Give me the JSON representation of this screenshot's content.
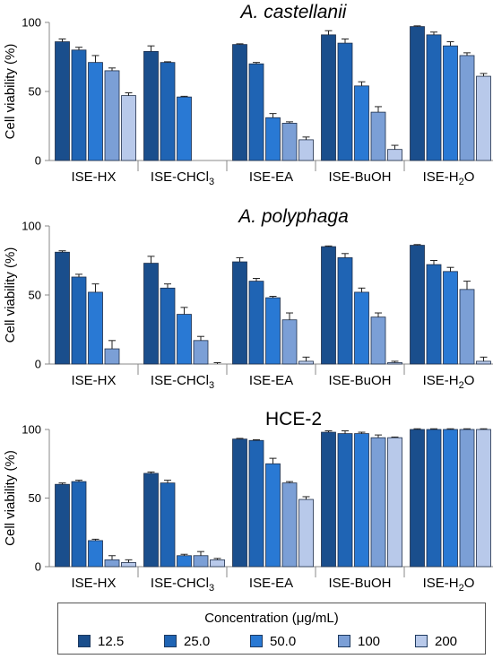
{
  "chart_data": [
    {
      "type": "bar",
      "title": "A. castellanii",
      "title_italic": true,
      "ylabel": "Cell viability (%)",
      "ylim": [
        0,
        100
      ],
      "yticks": [
        0,
        50,
        100
      ],
      "categories": [
        "ISE-HX",
        "ISE-CHCl3",
        "ISE-EA",
        "ISE-BuOH",
        "ISE-H2O"
      ],
      "series": [
        {
          "name": "12.5",
          "values": [
            86,
            79,
            84,
            91,
            97
          ],
          "errors": [
            2,
            4,
            0.5,
            3,
            0.5
          ]
        },
        {
          "name": "25.0",
          "values": [
            80,
            71,
            70,
            85,
            91
          ],
          "errors": [
            2,
            0.5,
            1,
            3,
            2
          ]
        },
        {
          "name": "50.0",
          "values": [
            71,
            46,
            31,
            54,
            83
          ],
          "errors": [
            5,
            0.5,
            3,
            3,
            3
          ]
        },
        {
          "name": "100",
          "values": [
            65,
            0,
            27,
            35,
            76
          ],
          "errors": [
            2,
            0,
            1,
            4,
            2
          ]
        },
        {
          "name": "200",
          "values": [
            47,
            0,
            15,
            8,
            61
          ],
          "errors": [
            2,
            0,
            2,
            3,
            2
          ]
        }
      ]
    },
    {
      "type": "bar",
      "title": "A. polyphaga",
      "title_italic": true,
      "ylabel": "Cell viability (%)",
      "ylim": [
        0,
        100
      ],
      "yticks": [
        0,
        50,
        100
      ],
      "categories": [
        "ISE-HX",
        "ISE-CHCl3",
        "ISE-EA",
        "ISE-BuOH",
        "ISE-H2O"
      ],
      "series": [
        {
          "name": "12.5",
          "values": [
            81,
            73,
            74,
            85,
            86
          ],
          "errors": [
            1,
            5,
            3,
            0.5,
            0.5
          ]
        },
        {
          "name": "25.0",
          "values": [
            63,
            55,
            60,
            77,
            72
          ],
          "errors": [
            2,
            3,
            2,
            3,
            3
          ]
        },
        {
          "name": "50.0",
          "values": [
            52,
            36,
            48,
            52,
            67
          ],
          "errors": [
            6,
            5,
            1,
            3,
            3
          ]
        },
        {
          "name": "100",
          "values": [
            11,
            17,
            32,
            34,
            54
          ],
          "errors": [
            6,
            3,
            5,
            3,
            6
          ]
        },
        {
          "name": "200",
          "values": [
            0,
            0,
            2,
            1,
            2
          ],
          "errors": [
            0,
            1,
            3,
            1,
            3
          ]
        }
      ]
    },
    {
      "type": "bar",
      "title": "HCE-2",
      "title_italic": false,
      "ylabel": "Cell viability (%)",
      "ylim": [
        0,
        100
      ],
      "yticks": [
        0,
        50,
        100
      ],
      "categories": [
        "ISE-HX",
        "ISE-CHCl3",
        "ISE-EA",
        "ISE-BuOH",
        "ISE-H2O"
      ],
      "series": [
        {
          "name": "12.5",
          "values": [
            60,
            68,
            93,
            98,
            100
          ],
          "errors": [
            1,
            1,
            0.5,
            1,
            0.5
          ]
        },
        {
          "name": "25.0",
          "values": [
            62,
            61,
            92,
            97,
            100
          ],
          "errors": [
            1,
            2,
            0.5,
            2,
            0.5
          ]
        },
        {
          "name": "50.0",
          "values": [
            19,
            8,
            75,
            97,
            100
          ],
          "errors": [
            1,
            1,
            4,
            1,
            0.5
          ]
        },
        {
          "name": "100",
          "values": [
            5,
            8,
            61,
            94,
            100
          ],
          "errors": [
            3,
            3,
            1,
            2,
            0.5
          ]
        },
        {
          "name": "200",
          "values": [
            3,
            5,
            49,
            94,
            100
          ],
          "errors": [
            2,
            1,
            2,
            0.5,
            0.5
          ]
        }
      ]
    }
  ],
  "legend": {
    "title": "Concentration (μg/mL)",
    "items": [
      {
        "label": "12.5",
        "color": "#1a4e8c"
      },
      {
        "label": "25.0",
        "color": "#1f64b4"
      },
      {
        "label": "50.0",
        "color": "#2979d4"
      },
      {
        "label": "100",
        "color": "#7b9fd6"
      },
      {
        "label": "200",
        "color": "#b8c9ea"
      }
    ]
  }
}
